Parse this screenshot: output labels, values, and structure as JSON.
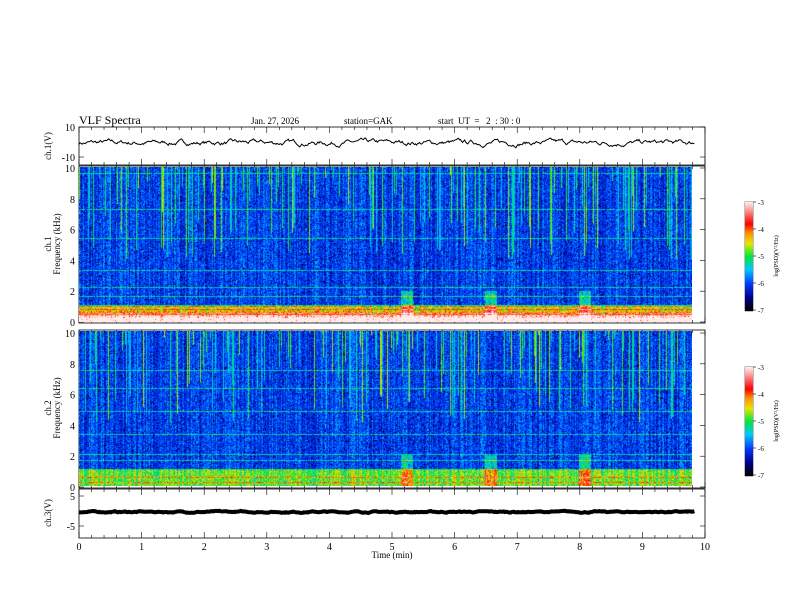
{
  "header": {
    "title": "VLF Spectra",
    "date": "Jan. 27, 2026",
    "station": "station=GAK",
    "start_ut": "start  UT  =   2  : 30 : 0"
  },
  "chart_data": [
    {
      "type": "line",
      "panel": "ch1-waveform",
      "ylabel": "ch.1(V)",
      "ylim": [
        -10,
        10
      ],
      "yticks": [
        "10",
        "-10"
      ],
      "xlim": [
        0,
        10
      ],
      "data_end_min": 9.83,
      "mean_value": -0.5,
      "amplitude": 1.5,
      "color": "#000000"
    },
    {
      "type": "heatmap",
      "panel": "ch1-spectrogram",
      "ylabel": "ch.1\nFrequency (kHz)",
      "ylabel_line1": "ch.1",
      "ylabel_line2": "Frequency (kHz)",
      "ylim": [
        0,
        10
      ],
      "yticks": [
        "0",
        "2",
        "4",
        "6",
        "8",
        "10"
      ],
      "xlim": [
        0,
        10
      ],
      "data_end_min": 9.83,
      "bands_khz": [
        0.2,
        0.5,
        0.8,
        1.0,
        1.6,
        2.2,
        3.3,
        5.4,
        7.3,
        9.6
      ],
      "bursts_min": [
        5.25,
        6.6,
        8.1
      ],
      "colorbar": {
        "label": "log(PSD)(V²/Hz)",
        "range": [
          -7,
          -3
        ],
        "ticks": [
          "-3",
          "-4",
          "-5",
          "-6",
          "-7"
        ]
      }
    },
    {
      "type": "heatmap",
      "panel": "ch2-spectrogram",
      "ylabel_line1": "ch.2",
      "ylabel_line2": "Frequency (kHz)",
      "ylim": [
        0,
        10
      ],
      "yticks": [
        "0",
        "2",
        "4",
        "6",
        "8",
        "10"
      ],
      "xlim": [
        0,
        10
      ],
      "data_end_min": 9.83,
      "bands_khz": [
        0.2,
        0.5,
        1.6,
        2.0,
        3.3,
        4.8,
        6.3,
        7.5
      ],
      "bursts_min": [
        5.25,
        6.6,
        8.1
      ],
      "colorbar": {
        "label": "log(PSD)(V²/Hz)",
        "range": [
          -7,
          -3
        ],
        "ticks": [
          "-3",
          "-4",
          "-5",
          "-6",
          "-7"
        ]
      }
    },
    {
      "type": "line",
      "panel": "ch3-waveform",
      "ylabel": "ch.3(V)",
      "ylim": [
        -5,
        5
      ],
      "yticks": [
        "5",
        "-5"
      ],
      "xlim": [
        0,
        10
      ],
      "data_end_min": 9.83,
      "mean_value": -0.3,
      "xlabel": "Time  (min)",
      "xticks": [
        "0",
        "1",
        "2",
        "3",
        "4",
        "5",
        "6",
        "7",
        "8",
        "9",
        "10"
      ]
    }
  ]
}
